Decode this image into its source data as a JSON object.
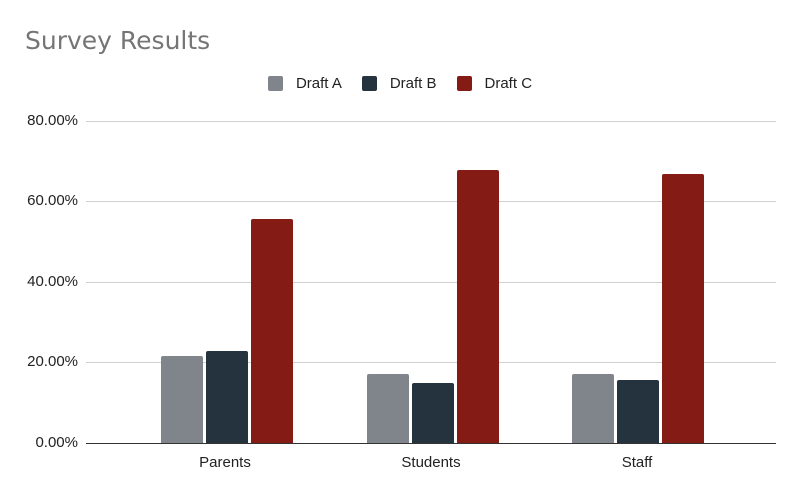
{
  "chart_data": {
    "type": "bar",
    "title": "Survey Results",
    "categories": [
      "Parents",
      "Students",
      "Staff"
    ],
    "series": [
      {
        "name": "Draft A",
        "color": "#80858c",
        "values": [
          21.6,
          17.2,
          17.2
        ]
      },
      {
        "name": "Draft B",
        "color": "#25333f",
        "values": [
          22.9,
          15.0,
          15.6
        ]
      },
      {
        "name": "Draft C",
        "color": "#841c15",
        "values": [
          55.7,
          67.8,
          66.8
        ]
      }
    ],
    "xlabel": "",
    "ylabel": "",
    "ylim": [
      0,
      80
    ],
    "yticks": [
      "0.00%",
      "20.00%",
      "40.00%",
      "60.00%",
      "80.00%"
    ],
    "grid": true,
    "legend_position": "top"
  }
}
